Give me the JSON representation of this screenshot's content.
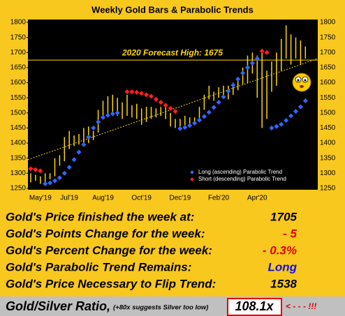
{
  "chart_data": {
    "type": "bar-range",
    "title": "Weekly Gold Bars & Parabolic Trends",
    "categories": [
      null,
      null,
      "May'19",
      null,
      null,
      null,
      null,
      null,
      "Jul'19",
      null,
      null,
      null,
      null,
      null,
      null,
      "Aug'19",
      null,
      null,
      null,
      null,
      null,
      null,
      null,
      "Oct'19",
      null,
      null,
      null,
      null,
      null,
      null,
      null,
      "Dec'19",
      null,
      null,
      null,
      null,
      null,
      null,
      null,
      "Feb'20",
      null,
      null,
      null,
      null,
      null,
      null,
      null,
      "Apr'20",
      null,
      null,
      null,
      null,
      null,
      null,
      null,
      null,
      null,
      null
    ],
    "low": [
      1270,
      1275,
      1265,
      1270,
      1280,
      1290,
      1325,
      1340,
      1380,
      1390,
      1395,
      1400,
      1400,
      1410,
      1435,
      1480,
      1490,
      1495,
      1490,
      1480,
      1490,
      1485,
      1480,
      1460,
      1470,
      1480,
      1485,
      1490,
      1480,
      1455,
      1450,
      1455,
      1460,
      1460,
      1460,
      1475,
      1510,
      1545,
      1540,
      1550,
      1555,
      1545,
      1560,
      1575,
      1595,
      1600,
      1630,
      1550,
      1450,
      1480,
      1570,
      1590,
      1640,
      1680,
      1660,
      1680,
      1660,
      1680
    ],
    "high": [
      1300,
      1295,
      1290,
      1300,
      1300,
      1350,
      1360,
      1420,
      1440,
      1425,
      1430,
      1450,
      1455,
      1440,
      1510,
      1540,
      1555,
      1560,
      1550,
      1535,
      1560,
      1525,
      1530,
      1515,
      1520,
      1520,
      1515,
      1520,
      1520,
      1500,
      1480,
      1480,
      1490,
      1485,
      1485,
      1520,
      1560,
      1590,
      1570,
      1585,
      1590,
      1590,
      1600,
      1610,
      1650,
      1690,
      1700,
      1690,
      1700,
      1640,
      1670,
      1700,
      1745,
      1790,
      1760,
      1750,
      1740,
      1720
    ],
    "bar_color": "#ffd700",
    "series": [
      {
        "name": "Long (ascending) Parabolic Trend",
        "color": "#3366ff",
        "values": [
          null,
          null,
          null,
          1265,
          1268,
          1275,
          1285,
          1300,
          1320,
          1345,
          1370,
          1395,
          1420,
          1450,
          1470,
          1485,
          1492,
          1497,
          1500,
          null,
          null,
          null,
          null,
          null,
          null,
          null,
          null,
          null,
          null,
          null,
          null,
          1448,
          1452,
          1458,
          1466,
          1476,
          1488,
          1502,
          1518,
          1535,
          1553,
          1572,
          1592,
          1612,
          1632,
          1650,
          1665,
          1680,
          null,
          null,
          1450,
          1455,
          1462,
          1475,
          1490,
          1505,
          1520,
          1540
        ]
      },
      {
        "name": "Short (descending) Parabolic Trend",
        "color": "#ff2020",
        "values": [
          1315,
          1312,
          1308,
          null,
          null,
          null,
          null,
          null,
          null,
          null,
          null,
          null,
          null,
          null,
          null,
          null,
          null,
          null,
          null,
          null,
          1570,
          1570,
          1568,
          1565,
          1560,
          1555,
          1545,
          1535,
          1525,
          1515,
          1505,
          null,
          null,
          null,
          null,
          null,
          null,
          null,
          null,
          null,
          null,
          null,
          null,
          null,
          null,
          null,
          null,
          null,
          1705,
          1700,
          null,
          null,
          null,
          null,
          null,
          null,
          null,
          null
        ]
      }
    ],
    "trendline": [
      1345,
      1680
    ],
    "forecast_value": 1675,
    "forecast_label": "2020 Forecast High:  1675",
    "ylim": [
      1250,
      1800
    ],
    "yticks": [
      1250,
      1300,
      1350,
      1400,
      1450,
      1500,
      1550,
      1600,
      1650,
      1700,
      1750,
      1800
    ]
  },
  "table": {
    "rows": [
      [
        "Gold's Price finished the week at:",
        "1705"
      ],
      [
        "Gold's Points Change for the week:",
        "- 5"
      ],
      [
        "Gold's Percent Change for the week:",
        "- 0.3%"
      ],
      [
        "Gold's Parabolic Trend Remains:",
        "Long"
      ],
      [
        "Gold's Price Necessary to Flip Trend:",
        "1538"
      ]
    ],
    "ratio": {
      "label": "Gold/Silver Ratio,",
      "note": "(+80x suggests Silver too low)",
      "value": "108.1x",
      "arrow": "< - - - !!!"
    }
  }
}
